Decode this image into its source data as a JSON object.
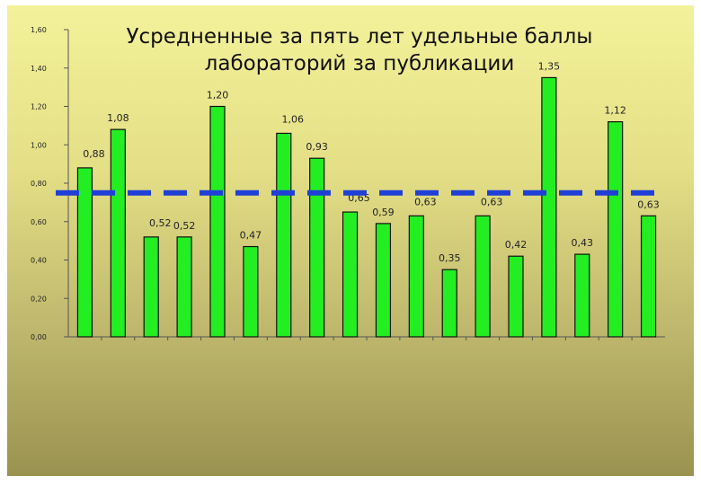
{
  "chart_data": {
    "type": "bar",
    "title": "Усредненные за пять лет удельные баллы лабораторий за публикации",
    "xlabel": "",
    "ylabel": "",
    "ylim": [
      0,
      1.6
    ],
    "yticks": [
      "0,00",
      "0,20",
      "0,40",
      "0,60",
      "0,80",
      "1,00",
      "1,20",
      "1,40",
      "1,60"
    ],
    "categories": [
      "",
      "",
      "",
      "",
      "",
      "",
      "",
      "",
      "",
      "",
      "",
      "",
      "",
      "",
      "",
      "",
      "",
      ""
    ],
    "series": [
      {
        "values": [
          0.88,
          1.08,
          0.52,
          0.52,
          1.2,
          0.47,
          1.06,
          0.93,
          0.65,
          0.59,
          0.63,
          0.35,
          0.63,
          0.42,
          1.35,
          0.43,
          1.12,
          0.63
        ],
        "labels": [
          "0,88",
          "1,08",
          "0,52",
          "0,52",
          "1,20",
          "0,47",
          "1,06",
          "0,93",
          "0,65",
          "0,59",
          "0,63",
          "0,35",
          "0,63",
          "0,42",
          "1,35",
          "0,43",
          "1,12",
          "0,63"
        ],
        "color": "#22ee22"
      }
    ],
    "reference_line": {
      "value": 0.75,
      "style": "dashed",
      "color": "#1f3fd6"
    },
    "grid": false,
    "legend": "none"
  }
}
